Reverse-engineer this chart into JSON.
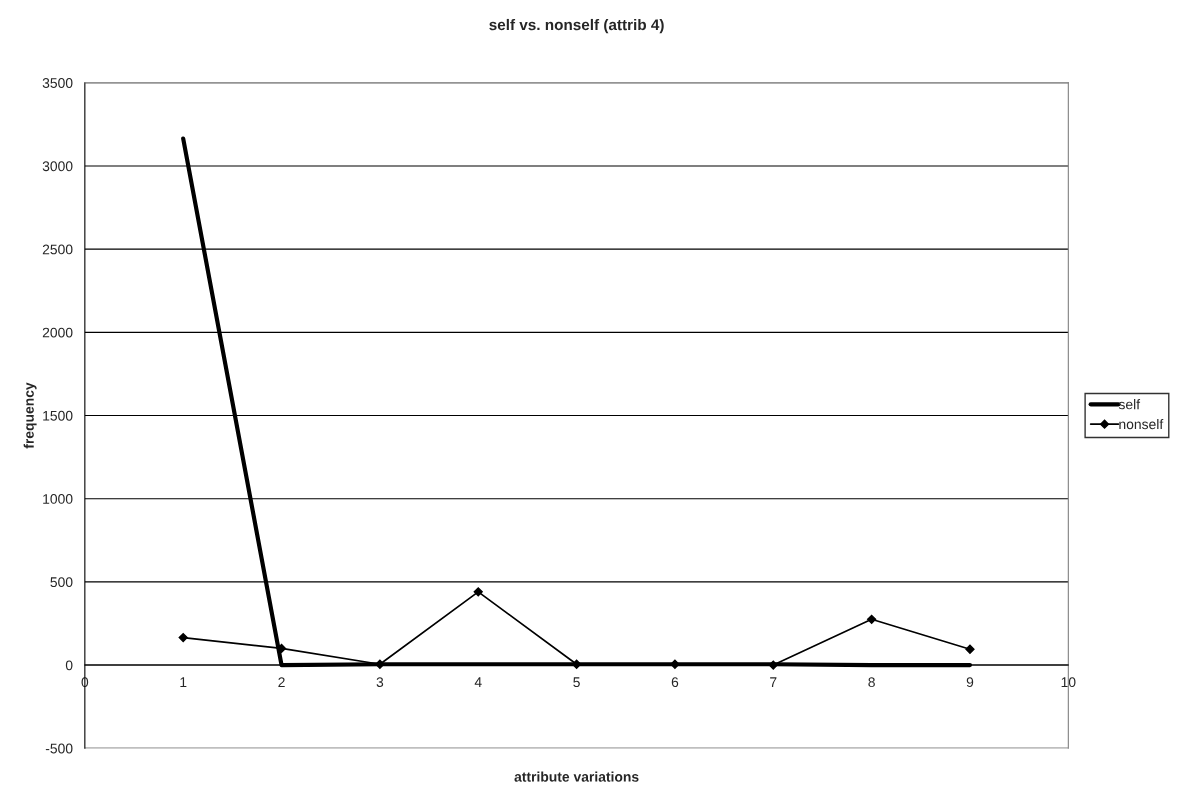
{
  "chart_data": {
    "type": "line",
    "title": "self vs. nonself (attrib 4)",
    "xlabel": "attribute variations",
    "ylabel": "frequency",
    "x": [
      1,
      2,
      3,
      4,
      5,
      6,
      7,
      8,
      9
    ],
    "series": [
      {
        "name": "self",
        "color": "#000000",
        "marker": "none",
        "values": [
          3165,
          0,
          5,
          5,
          5,
          5,
          5,
          0,
          0
        ]
      },
      {
        "name": "nonself",
        "color": "#000000",
        "marker": "diamond",
        "values": [
          165,
          100,
          5,
          440,
          5,
          5,
          0,
          275,
          95
        ]
      }
    ],
    "xlim": [
      0,
      10
    ],
    "xticks": [
      0,
      1,
      2,
      3,
      4,
      5,
      6,
      7,
      8,
      9,
      10
    ],
    "ylim": [
      -500,
      3500
    ],
    "yticks": [
      -500,
      0,
      500,
      1000,
      1500,
      2000,
      2500,
      3000,
      3500
    ],
    "grid": "y",
    "legend": "right",
    "line_style": "solid"
  }
}
